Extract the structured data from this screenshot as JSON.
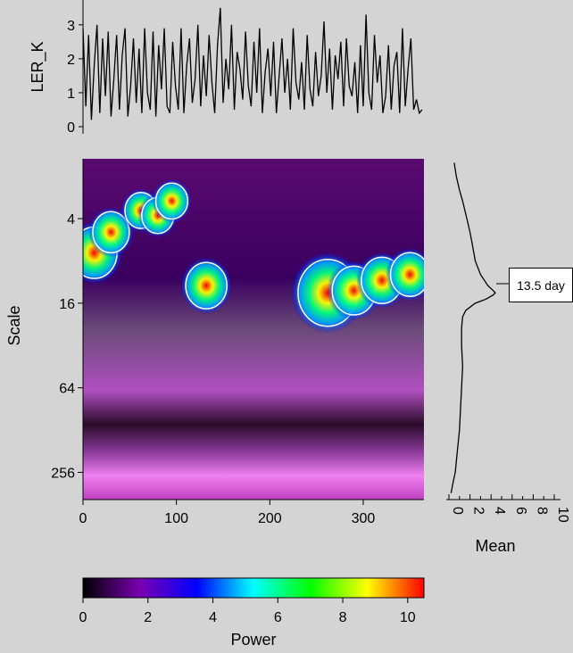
{
  "chart_data": [
    {
      "type": "line",
      "panel": "time-series",
      "ylabel": "LER_K",
      "ylim": [
        0,
        3.6
      ],
      "yticks": [
        "0",
        "1",
        "2",
        "3"
      ],
      "xlim": [
        0,
        365
      ],
      "x": [
        0,
        3,
        6,
        9,
        12,
        15,
        18,
        21,
        24,
        27,
        30,
        33,
        36,
        39,
        42,
        45,
        48,
        51,
        54,
        57,
        60,
        63,
        66,
        69,
        72,
        75,
        78,
        81,
        84,
        87,
        90,
        93,
        96,
        99,
        102,
        105,
        108,
        111,
        114,
        117,
        120,
        123,
        126,
        129,
        132,
        135,
        138,
        141,
        144,
        147,
        150,
        153,
        156,
        159,
        162,
        165,
        168,
        171,
        174,
        177,
        180,
        183,
        186,
        189,
        192,
        195,
        198,
        201,
        204,
        207,
        210,
        213,
        216,
        219,
        222,
        225,
        228,
        231,
        234,
        237,
        240,
        243,
        246,
        249,
        252,
        255,
        258,
        261,
        264,
        267,
        270,
        273,
        276,
        279,
        282,
        285,
        288,
        291,
        294,
        297,
        300,
        303,
        306,
        309,
        312,
        315,
        318,
        321,
        324,
        327,
        330,
        333,
        336,
        339,
        342,
        345,
        348,
        351,
        354,
        357,
        360,
        363
      ],
      "y": [
        2.9,
        0.6,
        2.7,
        0.2,
        1.8,
        3.0,
        0.4,
        2.6,
        0.9,
        2.8,
        0.3,
        1.4,
        2.7,
        0.5,
        2.1,
        2.9,
        0.3,
        1.2,
        2.6,
        0.7,
        2.3,
        0.4,
        2.9,
        1.0,
        0.5,
        2.8,
        0.3,
        2.4,
        1.1,
        2.9,
        0.6,
        0.4,
        2.5,
        1.2,
        0.5,
        2.9,
        0.4,
        1.8,
        2.6,
        0.7,
        1.4,
        3.0,
        0.6,
        2.1,
        0.9,
        2.7,
        1.3,
        0.4,
        2.4,
        3.5,
        0.7,
        2.0,
        1.1,
        3.0,
        0.5,
        2.2,
        1.7,
        0.8,
        2.8,
        1.2,
        0.6,
        2.5,
        1.0,
        2.9,
        0.4,
        1.6,
        2.3,
        0.9,
        2.5,
        0.4,
        1.5,
        2.6,
        1.0,
        2.0,
        0.5,
        2.9,
        1.3,
        0.8,
        1.9,
        0.5,
        2.7,
        1.1,
        0.6,
        2.2,
        0.9,
        1.5,
        3.1,
        1.0,
        2.3,
        0.5,
        2.1,
        1.4,
        2.5,
        0.6,
        2.6,
        1.2,
        0.9,
        1.9,
        0.4,
        2.4,
        0.6,
        3.3,
        1.0,
        0.5,
        2.7,
        1.3,
        2.1,
        0.4,
        0.9,
        2.4,
        0.5,
        1.8,
        2.2,
        0.4,
        2.9,
        0.6,
        1.7,
        2.6,
        0.5,
        0.8,
        0.4,
        0.5
      ]
    },
    {
      "type": "heatmap",
      "panel": "wavelet-power",
      "ylabel": "Scale",
      "xlim": [
        0,
        365
      ],
      "xticks": [
        "0",
        "100",
        "200",
        "300"
      ],
      "yscale": "log2",
      "ylim": [
        1.5,
        400
      ],
      "yticks": [
        "4",
        "16",
        "64",
        "256"
      ],
      "blobs": [
        {
          "x": 12,
          "scale": 7,
          "power": 7.5
        },
        {
          "x": 30,
          "scale": 5,
          "power": 5.5
        },
        {
          "x": 62,
          "scale": 3.5,
          "power": 4.5
        },
        {
          "x": 80,
          "scale": 3.8,
          "power": 4.5
        },
        {
          "x": 95,
          "scale": 3,
          "power": 4.5
        },
        {
          "x": 132,
          "scale": 12,
          "power": 6.5
        },
        {
          "x": 262,
          "scale": 13.5,
          "power": 10.5
        },
        {
          "x": 290,
          "scale": 13,
          "power": 7
        },
        {
          "x": 320,
          "scale": 11,
          "power": 6.5
        },
        {
          "x": 350,
          "scale": 10,
          "power": 6
        }
      ]
    },
    {
      "type": "line",
      "panel": "mean-power",
      "xlabel": "Mean",
      "xlim": [
        0,
        10
      ],
      "xticks": [
        "0",
        "2",
        "4",
        "6",
        "8",
        "10"
      ],
      "yscale": "log2",
      "scale": [
        1.6,
        2,
        2.5,
        3,
        4,
        5,
        6,
        8,
        10,
        12,
        13,
        13.5,
        14,
        15,
        16,
        18,
        20,
        24,
        32,
        45,
        64,
        90,
        128,
        180,
        256,
        300,
        360
      ],
      "mean": [
        0.5,
        0.7,
        1.0,
        1.3,
        1.7,
        2.0,
        2.2,
        2.5,
        3.0,
        3.7,
        4.2,
        4.4,
        4.2,
        3.5,
        2.5,
        1.6,
        1.3,
        1.2,
        1.2,
        1.3,
        1.2,
        1.1,
        1.0,
        0.8,
        0.6,
        0.4,
        0.2
      ],
      "annotation": "13.5 day"
    }
  ],
  "colorbar": {
    "xlabel": "Power",
    "ticks": [
      "0",
      "2",
      "4",
      "6",
      "8",
      "10"
    ],
    "range": [
      0,
      10.5
    ],
    "colors": [
      "#000000",
      "#7a00b0",
      "#0000ff",
      "#00ffff",
      "#00ff00",
      "#ffff00",
      "#ff0000"
    ]
  }
}
